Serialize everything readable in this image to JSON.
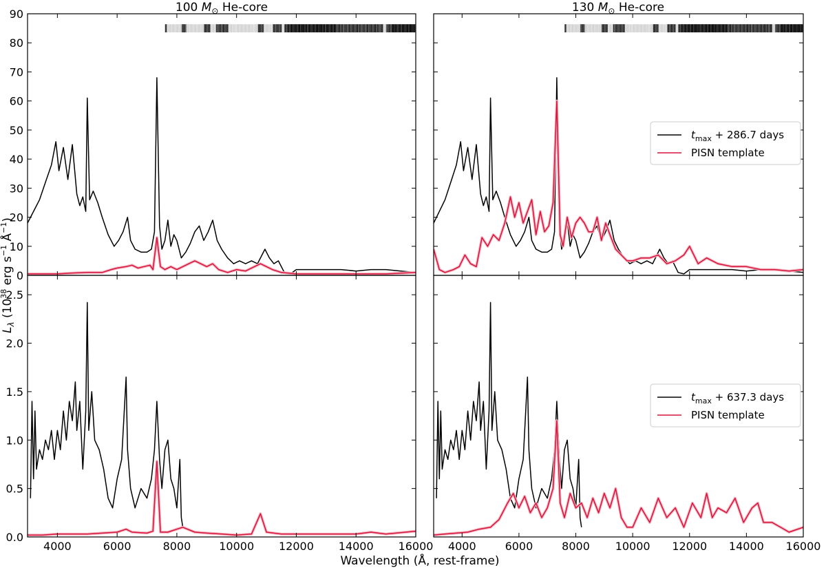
{
  "figure": {
    "xlabel": "Wavelength (Å, rest-frame)",
    "ylabel_main": "L",
    "ylabel_sub": "λ",
    "ylabel_rest": " (10",
    "ylabel_exp": "38",
    "ylabel_units": " erg s",
    "ylabel_exp2": "−1",
    "ylabel_units2": " Å",
    "ylabel_exp3": "−1",
    "ylabel_close": ")"
  },
  "colors": {
    "observed": "#000000",
    "template": "#d6133a",
    "band": "#f4b6c2"
  },
  "chart_data": [
    {
      "panel": "top-left",
      "type": "line",
      "title_mass": "100",
      "title_unit": "M",
      "title_sun": "⊙",
      "title_rest": " He-core",
      "xlim": [
        3000,
        16000
      ],
      "ylim": [
        0,
        90
      ],
      "yticks": [
        "0",
        "10",
        "20",
        "30",
        "40",
        "50",
        "60",
        "70",
        "80",
        "90"
      ],
      "xticks": [
        "4000",
        "6000",
        "8000",
        "10000",
        "12000",
        "14000",
        "16000"
      ],
      "telluric_band": true,
      "legend": null,
      "series": [
        {
          "role": "observed",
          "x": [
            3000,
            3200,
            3400,
            3600,
            3800,
            3950,
            4050,
            4200,
            4350,
            4500,
            4650,
            4750,
            4850,
            4950,
            5000,
            5080,
            5200,
            5350,
            5500,
            5700,
            5900,
            6050,
            6200,
            6350,
            6450,
            6600,
            6800,
            7000,
            7150,
            7250,
            7330,
            7420,
            7500,
            7600,
            7700,
            7800,
            7900,
            8000,
            8150,
            8300,
            8450,
            8600,
            8750,
            8900,
            9050,
            9200,
            9350,
            9500,
            9700,
            9900,
            10100,
            10300,
            10500,
            10700,
            10850,
            10950,
            11100,
            11250,
            11400,
            11600,
            11800,
            12000,
            12300,
            12600,
            13000,
            13500,
            14000,
            14500,
            15000,
            15500,
            16000
          ],
          "y": [
            18,
            22,
            26,
            32,
            38,
            46,
            36,
            44,
            33,
            45,
            28,
            24,
            27,
            22,
            61,
            26,
            29,
            25,
            20,
            14,
            10,
            12,
            15,
            20,
            12,
            9,
            8,
            8,
            9,
            15,
            68,
            17,
            9,
            12,
            19,
            10,
            14,
            12,
            6,
            8,
            11,
            15,
            17,
            12,
            15,
            19,
            12,
            9,
            6,
            4,
            5,
            4,
            5,
            4,
            7,
            9,
            6,
            4,
            5,
            1,
            0.5,
            2,
            2,
            2,
            2,
            2,
            1.5,
            2,
            2,
            1.5,
            1
          ]
        },
        {
          "role": "template",
          "x": [
            3000,
            3500,
            4000,
            4500,
            5000,
            5500,
            5800,
            6000,
            6300,
            6500,
            6700,
            6900,
            7100,
            7200,
            7330,
            7450,
            7600,
            7800,
            8000,
            8200,
            8400,
            8600,
            8800,
            9000,
            9200,
            9400,
            9700,
            10000,
            10300,
            10600,
            10800,
            11000,
            11200,
            11500,
            12000,
            12500,
            13000,
            14000,
            15000,
            16000
          ],
          "y": [
            0.5,
            0.5,
            0.5,
            0.8,
            1,
            1,
            2,
            2.5,
            3,
            3.5,
            2.5,
            3,
            3.5,
            2,
            13,
            3,
            2,
            3,
            2,
            3,
            4,
            5,
            4,
            3,
            4,
            2,
            1,
            2,
            1.5,
            3,
            4,
            3,
            2,
            1,
            0.5,
            0.5,
            0.5,
            0.5,
            0.5,
            1
          ]
        }
      ]
    },
    {
      "panel": "top-right",
      "type": "line",
      "title_mass": "130",
      "title_unit": "M",
      "title_sun": "⊙",
      "title_rest": " He-core",
      "xlim": [
        3000,
        16000
      ],
      "ylim": [
        0,
        90
      ],
      "yticks": [
        "0",
        "10",
        "20",
        "30",
        "40",
        "50",
        "60",
        "70",
        "80",
        "90"
      ],
      "xticks": [
        "4000",
        "6000",
        "8000",
        "10000",
        "12000",
        "14000",
        "16000"
      ],
      "telluric_band": true,
      "legend": {
        "placement": "right",
        "observed_t": "t",
        "observed_sub": "max",
        "observed_rest": " + 286.7 days",
        "template_label": "PISN template"
      },
      "series": [
        {
          "role": "observed",
          "x": [
            3000,
            3200,
            3400,
            3600,
            3800,
            3950,
            4050,
            4200,
            4350,
            4500,
            4650,
            4750,
            4850,
            4950,
            5000,
            5080,
            5200,
            5350,
            5500,
            5700,
            5900,
            6050,
            6200,
            6350,
            6450,
            6600,
            6800,
            7000,
            7150,
            7250,
            7330,
            7420,
            7500,
            7600,
            7700,
            7800,
            7900,
            8000,
            8150,
            8300,
            8450,
            8600,
            8750,
            8900,
            9050,
            9200,
            9350,
            9500,
            9700,
            9900,
            10100,
            10300,
            10500,
            10700,
            10850,
            10950,
            11100,
            11250,
            11400,
            11600,
            11800,
            12000,
            12300,
            12600,
            13000,
            13500,
            14000,
            14500,
            15000,
            15500,
            16000
          ],
          "y": [
            18,
            22,
            26,
            32,
            38,
            46,
            36,
            44,
            33,
            45,
            28,
            24,
            27,
            22,
            61,
            26,
            29,
            25,
            20,
            14,
            10,
            12,
            15,
            20,
            12,
            9,
            8,
            8,
            9,
            15,
            68,
            17,
            9,
            12,
            19,
            10,
            14,
            12,
            6,
            8,
            11,
            15,
            17,
            12,
            15,
            19,
            12,
            9,
            6,
            4,
            5,
            4,
            5,
            4,
            7,
            9,
            6,
            4,
            5,
            1,
            0.5,
            2,
            2,
            2,
            2,
            2,
            1.5,
            2,
            2,
            1.5,
            1
          ]
        },
        {
          "role": "template",
          "x": [
            3000,
            3200,
            3400,
            3700,
            3900,
            4100,
            4300,
            4500,
            4700,
            4900,
            5100,
            5300,
            5500,
            5700,
            5850,
            6000,
            6150,
            6300,
            6450,
            6600,
            6750,
            6900,
            7050,
            7200,
            7330,
            7450,
            7550,
            7700,
            7850,
            8000,
            8150,
            8300,
            8450,
            8600,
            8750,
            8900,
            9050,
            9200,
            9400,
            9600,
            9800,
            10000,
            10300,
            10600,
            10900,
            11200,
            11500,
            11800,
            12000,
            12300,
            12600,
            13000,
            13500,
            14000,
            14500,
            15000,
            15500,
            16000
          ],
          "y": [
            9,
            2,
            1,
            2,
            3,
            7,
            4,
            3,
            13,
            10,
            14,
            12,
            18,
            27,
            20,
            25,
            18,
            22,
            26,
            14,
            22,
            15,
            17,
            25,
            60,
            14,
            10,
            20,
            13,
            18,
            20,
            18,
            15,
            15,
            20,
            12,
            18,
            14,
            9,
            7,
            5,
            5,
            6,
            6,
            7,
            4,
            5,
            7,
            10,
            4,
            6,
            4,
            3,
            3,
            2,
            2,
            1.5,
            2
          ]
        }
      ]
    },
    {
      "panel": "bottom-left",
      "type": "line",
      "xlim": [
        3000,
        16000
      ],
      "ylim": [
        0,
        2.7
      ],
      "yticks": [
        "0.0",
        "0.5",
        "1.0",
        "1.5",
        "2.0",
        "2.5"
      ],
      "xticks": [
        "4000",
        "6000",
        "8000",
        "10000",
        "12000",
        "14000",
        "16000"
      ],
      "telluric_band": false,
      "legend": null,
      "series": [
        {
          "role": "observed",
          "x": [
            3100,
            3150,
            3200,
            3250,
            3300,
            3400,
            3500,
            3600,
            3700,
            3800,
            3900,
            4000,
            4100,
            4200,
            4300,
            4400,
            4500,
            4600,
            4650,
            4750,
            4850,
            4950,
            5000,
            5050,
            5150,
            5250,
            5400,
            5550,
            5700,
            5850,
            6000,
            6150,
            6300,
            6350,
            6450,
            6600,
            6800,
            7000,
            7150,
            7250,
            7330,
            7420,
            7500,
            7600,
            7700,
            7800,
            7900,
            8000,
            8100,
            8150,
            8200
          ],
          "y": [
            0.4,
            1.4,
            0.6,
            1.3,
            0.7,
            0.9,
            0.8,
            1.0,
            0.9,
            1.1,
            0.8,
            1.1,
            0.9,
            1.3,
            1.0,
            1.4,
            1.2,
            1.6,
            1.1,
            1.4,
            0.7,
            1.3,
            2.42,
            1.1,
            1.5,
            1.0,
            0.9,
            0.7,
            0.4,
            0.3,
            0.6,
            0.8,
            1.65,
            0.9,
            0.5,
            0.3,
            0.5,
            0.4,
            0.6,
            0.9,
            1.4,
            0.8,
            0.5,
            0.9,
            1.0,
            0.6,
            0.5,
            0.3,
            0.8,
            0.2,
            0.1
          ]
        },
        {
          "role": "template",
          "x": [
            3000,
            3500,
            4000,
            4500,
            5000,
            5500,
            6000,
            6300,
            6500,
            7000,
            7200,
            7330,
            7450,
            7700,
            8000,
            8200,
            8600,
            9000,
            9500,
            10000,
            10500,
            10800,
            11000,
            11500,
            12000,
            13000,
            14000,
            14500,
            15000,
            16000
          ],
          "y": [
            0.02,
            0.02,
            0.03,
            0.03,
            0.03,
            0.04,
            0.05,
            0.08,
            0.05,
            0.04,
            0.06,
            0.78,
            0.05,
            0.05,
            0.08,
            0.1,
            0.05,
            0.04,
            0.03,
            0.02,
            0.03,
            0.24,
            0.05,
            0.03,
            0.03,
            0.03,
            0.03,
            0.05,
            0.03,
            0.06
          ]
        }
      ]
    },
    {
      "panel": "bottom-right",
      "type": "line",
      "xlim": [
        3000,
        16000
      ],
      "ylim": [
        0,
        2.7
      ],
      "yticks": [
        "0.0",
        "0.5",
        "1.0",
        "1.5",
        "2.0",
        "2.5"
      ],
      "xticks": [
        "4000",
        "6000",
        "8000",
        "10000",
        "12000",
        "14000",
        "16000"
      ],
      "telluric_band": false,
      "legend": {
        "placement": "right",
        "observed_t": "t",
        "observed_sub": "max",
        "observed_rest": " + 637.3 days",
        "template_label": "PISN template"
      },
      "series": [
        {
          "role": "observed",
          "x": [
            3100,
            3150,
            3200,
            3250,
            3300,
            3400,
            3500,
            3600,
            3700,
            3800,
            3900,
            4000,
            4100,
            4200,
            4300,
            4400,
            4500,
            4600,
            4650,
            4750,
            4850,
            4950,
            5000,
            5050,
            5150,
            5250,
            5400,
            5550,
            5700,
            5850,
            6000,
            6150,
            6300,
            6350,
            6450,
            6600,
            6800,
            7000,
            7150,
            7250,
            7330,
            7420,
            7500,
            7600,
            7700,
            7800,
            7900,
            8000,
            8100,
            8150,
            8200
          ],
          "y": [
            0.4,
            1.4,
            0.6,
            1.3,
            0.7,
            0.9,
            0.8,
            1.0,
            0.9,
            1.1,
            0.8,
            1.1,
            0.9,
            1.3,
            1.0,
            1.4,
            1.2,
            1.6,
            1.1,
            1.4,
            0.7,
            1.3,
            2.42,
            1.1,
            1.5,
            1.0,
            0.9,
            0.7,
            0.4,
            0.3,
            0.6,
            0.8,
            1.65,
            0.9,
            0.5,
            0.3,
            0.5,
            0.4,
            0.6,
            0.9,
            1.4,
            0.8,
            0.5,
            0.9,
            1.0,
            0.6,
            0.5,
            0.3,
            0.8,
            0.2,
            0.1
          ]
        },
        {
          "role": "template",
          "x": [
            3000,
            3400,
            3800,
            4200,
            4600,
            5000,
            5300,
            5600,
            5800,
            6000,
            6200,
            6400,
            6600,
            6800,
            7000,
            7200,
            7330,
            7450,
            7600,
            7800,
            8000,
            8200,
            8400,
            8600,
            8800,
            9000,
            9200,
            9400,
            9600,
            9800,
            10000,
            10300,
            10600,
            10900,
            11200,
            11500,
            11800,
            12100,
            12400,
            12600,
            12800,
            13000,
            13300,
            13600,
            13900,
            14200,
            14400,
            14600,
            14900,
            15200,
            15500,
            16000
          ],
          "y": [
            0.02,
            0.03,
            0.04,
            0.05,
            0.08,
            0.1,
            0.18,
            0.35,
            0.45,
            0.3,
            0.42,
            0.25,
            0.35,
            0.2,
            0.3,
            0.5,
            1.2,
            0.35,
            0.2,
            0.45,
            0.3,
            0.35,
            0.2,
            0.4,
            0.25,
            0.45,
            0.3,
            0.5,
            0.2,
            0.1,
            0.1,
            0.3,
            0.15,
            0.4,
            0.2,
            0.3,
            0.1,
            0.35,
            0.2,
            0.45,
            0.2,
            0.3,
            0.25,
            0.4,
            0.15,
            0.3,
            0.35,
            0.15,
            0.15,
            0.1,
            0.05,
            0.1
          ]
        }
      ]
    }
  ]
}
